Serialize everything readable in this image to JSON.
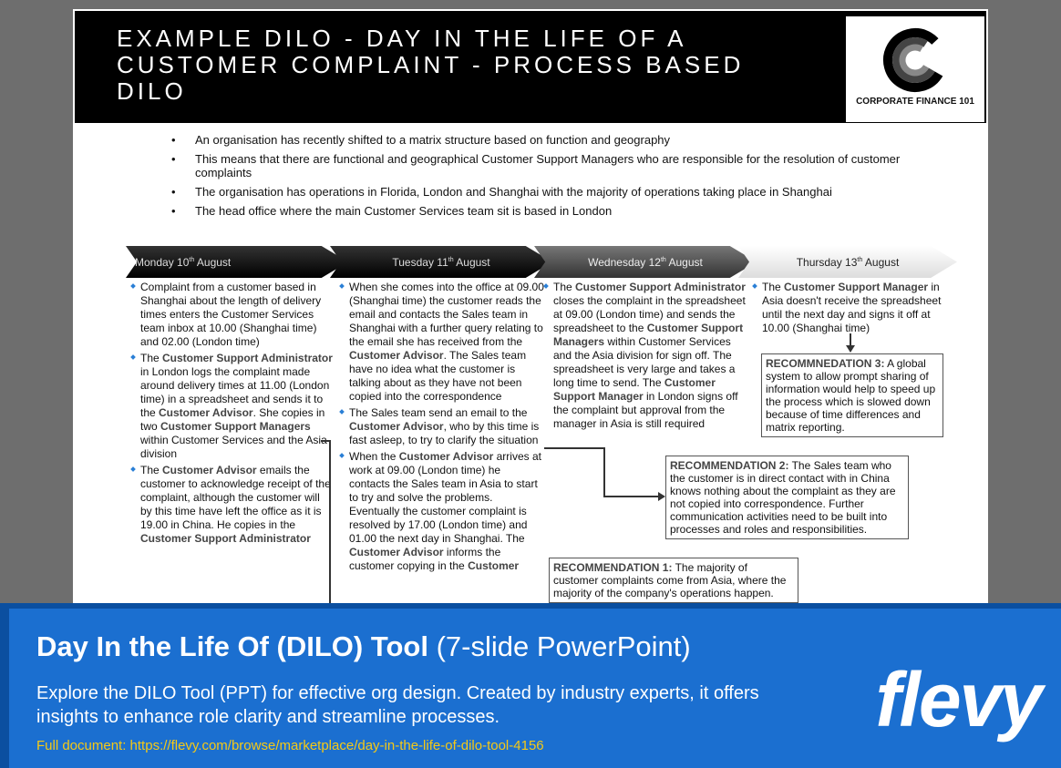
{
  "slide": {
    "title": "EXAMPLE DILO - DAY IN THE LIFE OF A CUSTOMER COMPLAINT - PROCESS BASED DILO",
    "logo_text": "CORPORATE FINANCE 101",
    "intro": [
      "An organisation has recently shifted to a matrix structure based on function and geography",
      "This means that there are functional and geographical Customer Support Managers who are responsible for the resolution of customer complaints",
      "The organisation has operations in Florida, London and Shanghai with the majority of operations taking place in Shanghai",
      "The head office where the main Customer Services team sit is based in London"
    ],
    "days": [
      {
        "day": "Monday 10",
        "sup": "th",
        "month": " August"
      },
      {
        "day": "Tuesday 11",
        "sup": "th",
        "month": " August"
      },
      {
        "day": "Wednesday 12",
        "sup": "th",
        "month": " August"
      },
      {
        "day": "Thursday 13",
        "sup": "th",
        "month": " August"
      }
    ],
    "columns": [
      [
        [
          {
            "t": "Complaint from a customer based in Shanghai about the length of delivery times enters the Customer Services team inbox at 10.00 (Shanghai time) and 02.00 (London time)"
          }
        ],
        [
          {
            "t": "The "
          },
          {
            "t": "Customer Support Administrator",
            "b": true
          },
          {
            "t": " in London logs the complaint made around delivery times at 11.00 (London time) in a spreadsheet and sends it to the "
          },
          {
            "t": "Customer Advisor",
            "b": true
          },
          {
            "t": ". She copies in two "
          },
          {
            "t": "Customer Support Managers",
            "b": true
          },
          {
            "t": " within Customer Services and the Asia division"
          }
        ],
        [
          {
            "t": "The "
          },
          {
            "t": "Customer Advisor",
            "b": true
          },
          {
            "t": " emails the customer to acknowledge receipt of the complaint, although the customer will by this time have left the office as it is 19.00 in China. He copies in the "
          },
          {
            "t": "Customer Support Administrator",
            "b": true
          }
        ]
      ],
      [
        [
          {
            "t": "When she comes into the office at 09.00 (Shanghai time) the customer reads the email and contacts the Sales team in Shanghai with a further query relating to the email she has received from the "
          },
          {
            "t": "Customer Advisor",
            "b": true
          },
          {
            "t": ". The Sales team have no idea what the customer is talking about as they have not been copied into the correspondence"
          }
        ],
        [
          {
            "t": "The Sales team send an email to the "
          },
          {
            "t": "Customer Advisor",
            "b": true
          },
          {
            "t": ", who by this time is fast asleep, to try to clarify the situation"
          }
        ],
        [
          {
            "t": "When the "
          },
          {
            "t": "Customer Advisor",
            "b": true
          },
          {
            "t": " arrives at work at 09.00 (London time) he contacts the Sales team in Asia to start to try and solve the problems. Eventually the customer complaint is resolved by 17.00 (London time) and 01.00 the next day in Shanghai. The "
          },
          {
            "t": "Customer Advisor",
            "b": true
          },
          {
            "t": " informs the customer copying in the "
          },
          {
            "t": "Customer",
            "b": true
          }
        ]
      ],
      [
        [
          {
            "t": "The "
          },
          {
            "t": "Customer Support Administrator",
            "b": true
          },
          {
            "t": " closes the complaint in the spreadsheet at 09.00 (London time) and sends the spreadsheet to the "
          },
          {
            "t": "Customer Support Managers",
            "b": true
          },
          {
            "t": " within Customer Services and the Asia division for sign off. The spreadsheet is very large and takes a long time to send. The "
          },
          {
            "t": "Customer Support Manager",
            "b": true
          },
          {
            "t": " in London signs off the complaint but approval from the manager in Asia is still required"
          }
        ]
      ],
      [
        [
          {
            "t": "The "
          },
          {
            "t": "Customer Support Manager",
            "b": true
          },
          {
            "t": " in Asia doesn't receive the spreadsheet until the next day and signs it off at 10.00 (Shanghai time)"
          }
        ]
      ]
    ],
    "recommendations": [
      {
        "label": "RECOMMENDATION 1:",
        "text": " The majority of customer complaints come from Asia, where the majority of the company's operations happen."
      },
      {
        "label": "RECOMMENDATION 2:",
        "text": " The Sales team who the customer is in direct contact with in China knows nothing about the complaint as they are not copied into correspondence. Further communication activities need to be built into processes and roles and responsibilities."
      },
      {
        "label": "RECOMMNEDATION 3:",
        "text": " A global system to allow prompt sharing of information would help to speed up the process which is slowed down because of time differences and matrix reporting."
      }
    ]
  },
  "banner": {
    "title_bold": "Day In the Life Of (DILO) Tool",
    "title_rest": " (7-slide PowerPoint)",
    "description": "Explore the DILO Tool (PPT) for effective org design. Created by industry experts, it offers insights to enhance role clarity and streamline processes.",
    "link": "Full document: https://flevy.com/browse/marketplace/day-in-the-life-of-dilo-tool-4156",
    "brand": "flevy"
  },
  "colors": {
    "banner": "#1b6fd0",
    "link": "#f6c915",
    "bullet": "#2a7fd6"
  }
}
